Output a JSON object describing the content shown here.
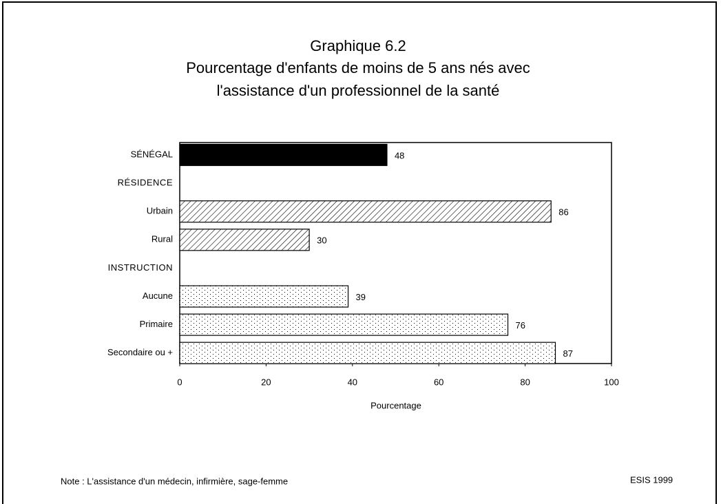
{
  "chart_data": {
    "type": "barh",
    "title": [
      "Graphique 6.2",
      "Pourcentage d'enfants de moins de 5 ans nés avec",
      "l'assistance d'un professionnel de la santé"
    ],
    "categories": [
      "SÉNÉGAL",
      "RÉSIDENCE",
      "Urbain",
      "Rural",
      "INSTRUCTION",
      "Aucune",
      "Primaire",
      "Secondaire ou +"
    ],
    "values": [
      48,
      null,
      86,
      30,
      null,
      39,
      76,
      87
    ],
    "fills": [
      "solid",
      null,
      "hatch",
      "hatch",
      null,
      "dots",
      "dots",
      "dots"
    ],
    "xlim": [
      0,
      100
    ],
    "xticks": [
      0,
      20,
      40,
      60,
      80,
      100
    ],
    "xlabel": "Pourcentage",
    "grid": false,
    "note": "Note : L'assistance d'un médecin, infirmière, sage-femme",
    "source": "ESIS 1999"
  }
}
